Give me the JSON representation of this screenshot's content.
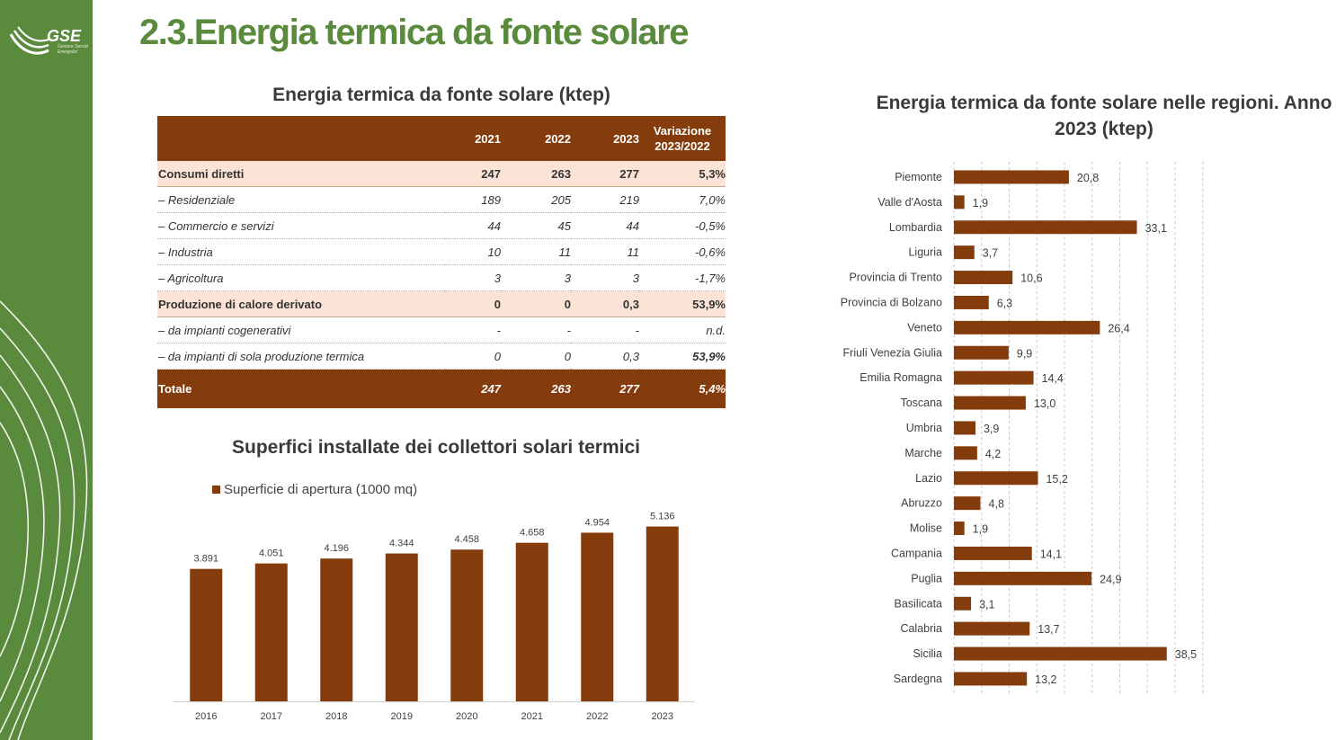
{
  "brand": {
    "logo_text": "GSE",
    "logo_sub": "Gestore Servizi Energetici"
  },
  "page_title": "2.3.Energia termica da fonte solare",
  "table": {
    "title": "Energia termica da fonte solare (ktep)",
    "headers": [
      "",
      "2021",
      "2022",
      "2023",
      "Variazione 2023/2022"
    ],
    "rows": [
      {
        "style": "bold",
        "cells": [
          "Consumi diretti",
          "247",
          "263",
          "277",
          "5,3%"
        ]
      },
      {
        "style": "italic",
        "cells": [
          "– Residenziale",
          "189",
          "205",
          "219",
          "7,0%"
        ]
      },
      {
        "style": "italic",
        "cells": [
          "– Commercio e servizi",
          "44",
          "45",
          "44",
          "-0,5%"
        ]
      },
      {
        "style": "italic",
        "cells": [
          "– Industria",
          "10",
          "11",
          "11",
          "-0,6%"
        ]
      },
      {
        "style": "italic",
        "cells": [
          "– Agricoltura",
          "3",
          "3",
          "3",
          "-1,7%"
        ]
      },
      {
        "style": "bold",
        "cells": [
          "Produzione di calore derivato",
          "0",
          "0",
          "0,3",
          "53,9%"
        ]
      },
      {
        "style": "italic",
        "cells": [
          "– da impianti cogenerativi",
          "-",
          "-",
          "-",
          "n.d."
        ]
      },
      {
        "style": "italic vbold",
        "cells": [
          "– da impianti di sola produzione termica",
          "0",
          "0",
          "0,3",
          "53,9%"
        ]
      },
      {
        "style": "total",
        "cells": [
          "Totale",
          "247",
          "263",
          "277",
          "5,4%"
        ]
      }
    ]
  },
  "chart_data": [
    {
      "type": "bar",
      "title": "Superfici installate dei collettori solari termici",
      "legend": "Superficie di apertura (1000 mq)",
      "legend_position": "top-left",
      "categories": [
        "2016",
        "2017",
        "2018",
        "2019",
        "2020",
        "2021",
        "2022",
        "2023"
      ],
      "values": [
        3891,
        4051,
        4196,
        4344,
        4458,
        4658,
        4954,
        5136
      ],
      "value_labels": [
        "3.891",
        "4.051",
        "4.196",
        "4.344",
        "4.458",
        "4.658",
        "4.954",
        "5.136"
      ],
      "ylim": [
        0,
        5600
      ],
      "grid": false,
      "color": "#843c0c"
    },
    {
      "type": "bar",
      "orientation": "horizontal",
      "title": "Energia termica da fonte solare nelle regioni. Anno 2023 (ktep)",
      "categories": [
        "Piemonte",
        "Valle d'Aosta",
        "Lombardia",
        "Liguria",
        "Provincia di Trento",
        "Provincia di Bolzano",
        "Veneto",
        "Friuli Venezia Giulia",
        "Emilia Romagna",
        "Toscana",
        "Umbria",
        "Marche",
        "Lazio",
        "Abruzzo",
        "Molise",
        "Campania",
        "Puglia",
        "Basilicata",
        "Calabria",
        "Sicilia",
        "Sardegna"
      ],
      "values": [
        20.8,
        1.9,
        33.1,
        3.7,
        10.6,
        6.3,
        26.4,
        9.9,
        14.4,
        13.0,
        3.9,
        4.2,
        15.2,
        4.8,
        1.9,
        14.1,
        24.9,
        3.1,
        13.7,
        38.5,
        13.2
      ],
      "value_labels": [
        "20,8",
        "1,9",
        "33,1",
        "3,7",
        "10,6",
        "6,3",
        "26,4",
        "9,9",
        "14,4",
        "13,0",
        "3,9",
        "4,2",
        "15,2",
        "4,8",
        "1,9",
        "14,1",
        "24,9",
        "3,1",
        "13,7",
        "38,5",
        "13,2"
      ],
      "xlim": [
        0,
        45
      ],
      "grid": true,
      "color": "#843c0c"
    }
  ]
}
